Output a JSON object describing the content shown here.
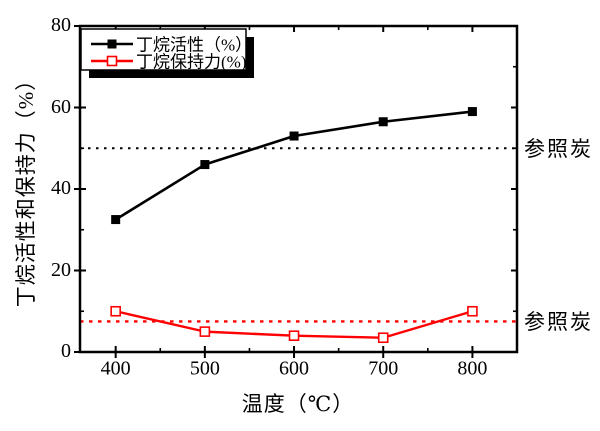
{
  "figure_title": "",
  "axes": {
    "x_label": "温度（℃）",
    "y_label": "丁烷活性和保持力（%）"
  },
  "legend": {
    "items": [
      {
        "label": "丁烷活性（%）",
        "color": "#000000",
        "marker": "filled-square"
      },
      {
        "label": "丁烷保持力(%)",
        "color": "#ff0000",
        "marker": "open-square"
      }
    ]
  },
  "annotations": [
    {
      "text": "参照炭",
      "value": 50,
      "color": "#000000"
    },
    {
      "text": "参照炭",
      "value": 7.5,
      "color": "#000000"
    }
  ],
  "chart_data": {
    "type": "line",
    "x": [
      400,
      500,
      600,
      700,
      800
    ],
    "series": [
      {
        "name": "丁烷活性（%）",
        "color": "#000000",
        "marker": "filled-square",
        "values": [
          32.5,
          46,
          53,
          56.5,
          59
        ]
      },
      {
        "name": "丁烷保持力(%)",
        "color": "#ff0000",
        "marker": "open-square",
        "values": [
          10,
          5,
          4,
          3.5,
          10
        ]
      }
    ],
    "reference_lines": [
      {
        "label": "参照炭",
        "value": 50,
        "color": "#000000",
        "style": "dotted"
      },
      {
        "label": "参照炭",
        "value": 7.5,
        "color": "#ff0000",
        "style": "dotted"
      }
    ],
    "title": "",
    "xlabel": "温度（℃）",
    "ylabel": "丁烷活性和保持力（%）",
    "xlim": [
      360,
      850
    ],
    "ylim": [
      0,
      80
    ],
    "x_ticks": [
      "400",
      "500",
      "600",
      "700",
      "800"
    ],
    "x_tick_values": [
      400,
      500,
      600,
      700,
      800
    ],
    "x_minor_ticks": [
      450,
      550,
      650,
      750
    ],
    "y_ticks": [
      "0",
      "20",
      "40",
      "60",
      "80"
    ],
    "y_tick_values": [
      0,
      20,
      40,
      60,
      80
    ],
    "y_minor_ticks": [
      10,
      30,
      50,
      70
    ],
    "grid": false,
    "legend_position": "top-left"
  }
}
